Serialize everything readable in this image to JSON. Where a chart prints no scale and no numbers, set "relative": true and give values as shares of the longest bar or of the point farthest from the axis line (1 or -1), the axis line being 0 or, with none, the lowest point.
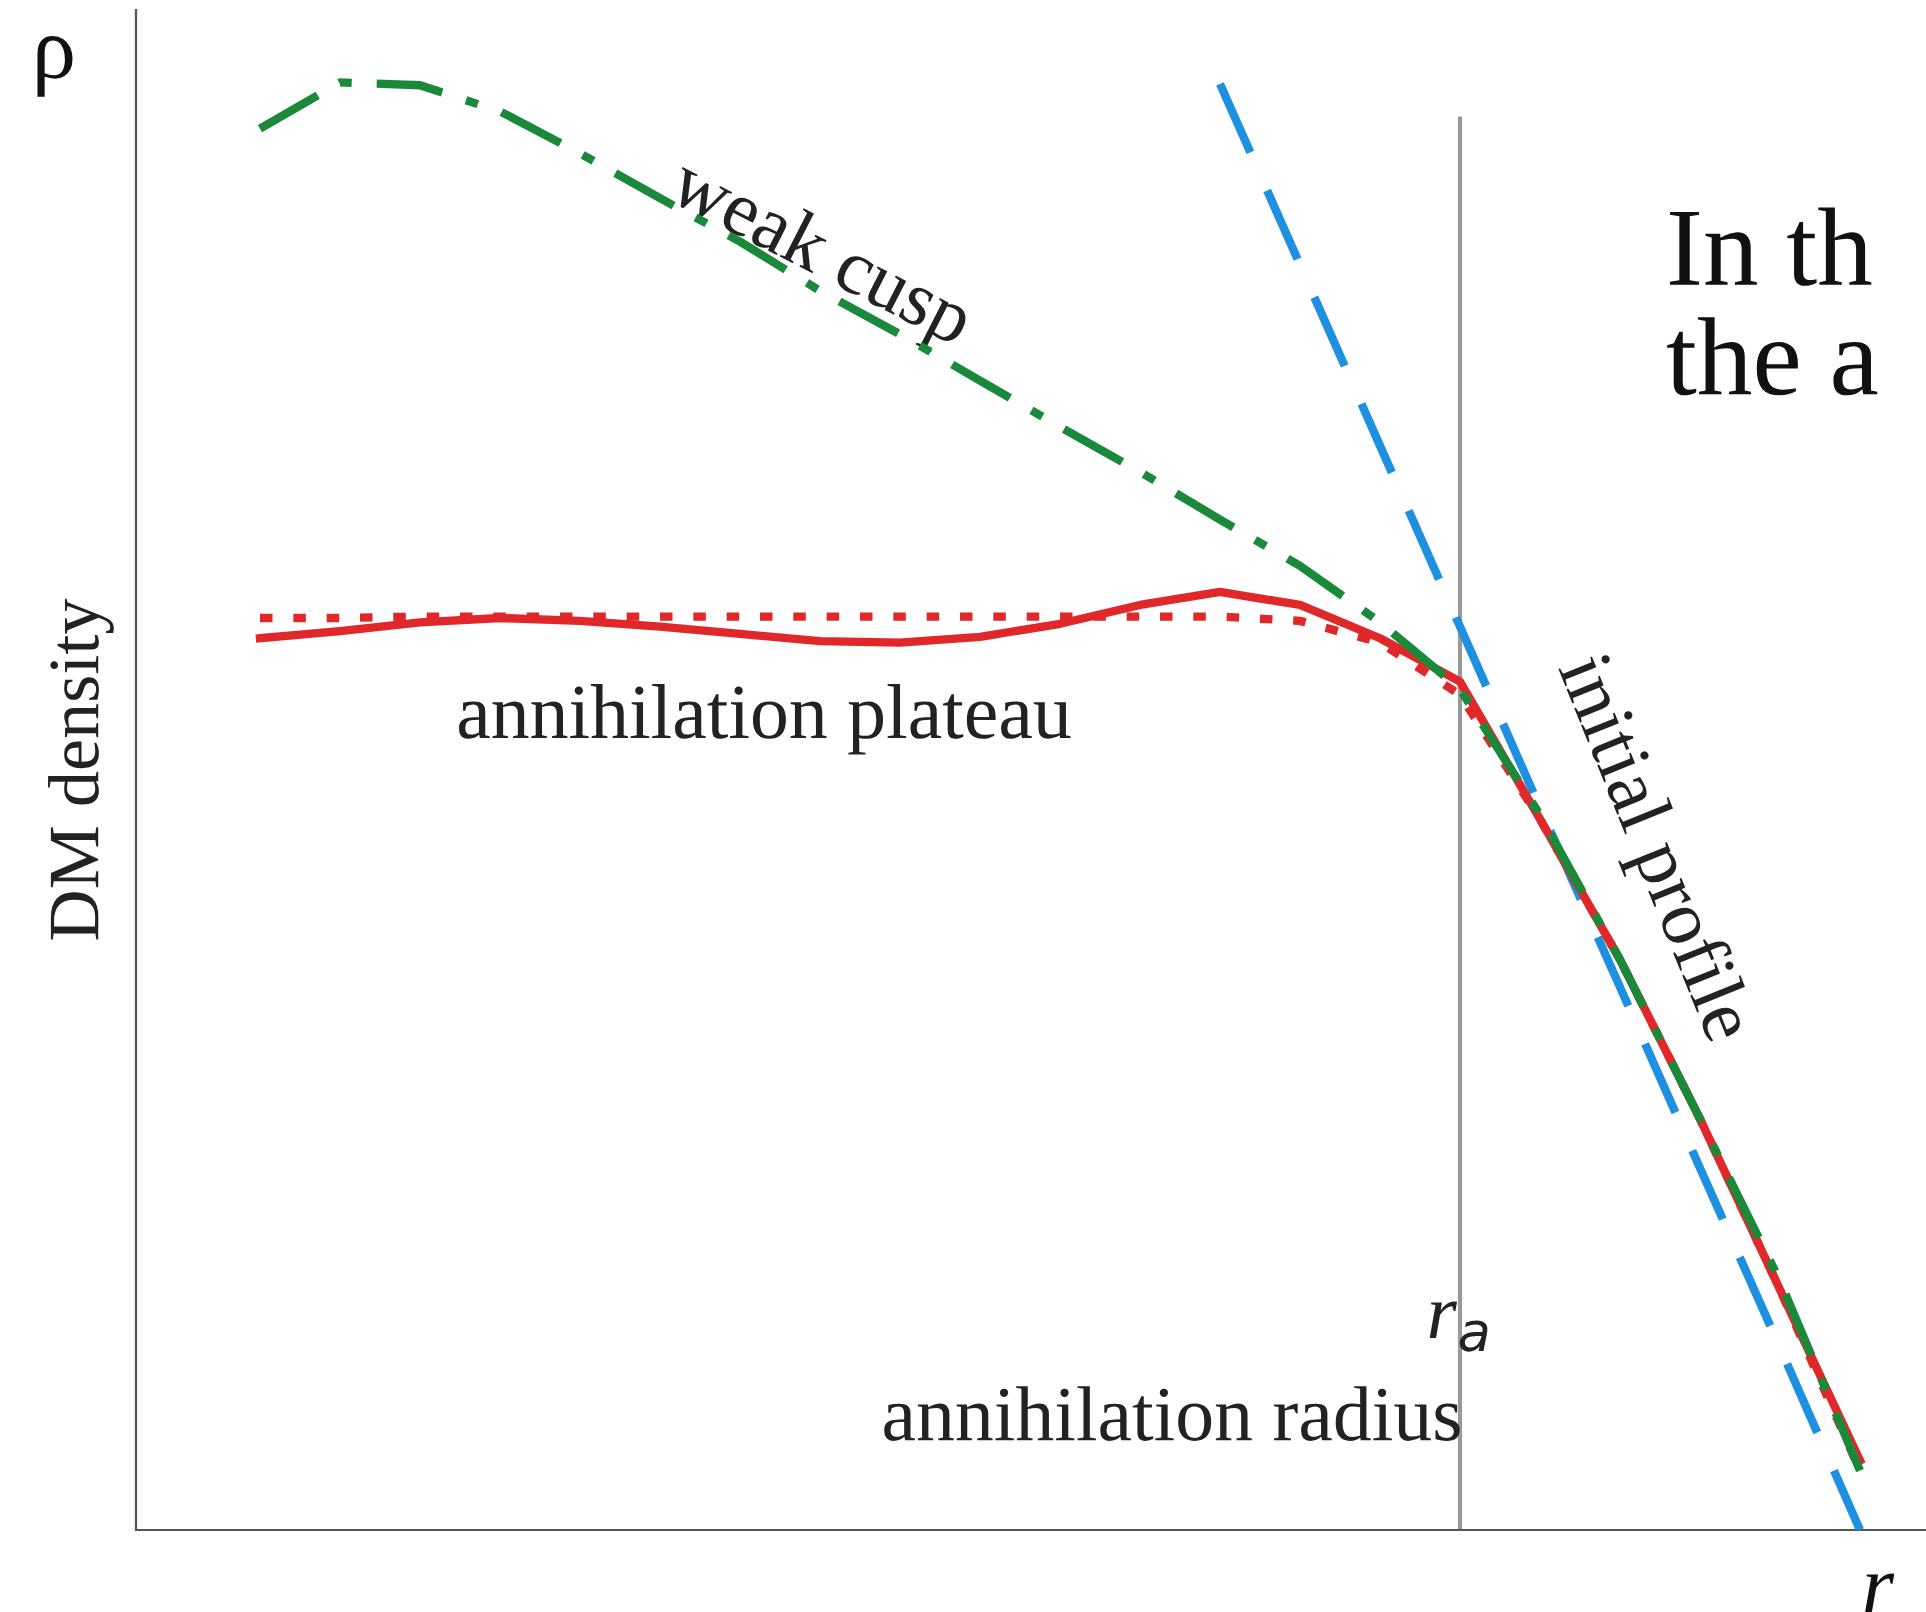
{
  "chart_data": {
    "type": "line",
    "relative": true,
    "ylabel": "DM density",
    "categories": [
      null,
      null,
      null,
      null,
      null,
      null,
      null,
      null,
      null,
      null,
      null,
      null,
      null,
      null,
      null,
      null,
      null,
      null,
      null,
      null,
      null
    ],
    "series": [
      {
        "name": "weak cusp",
        "color": "#1a8a3a",
        "line_style": "dashdot",
        "values": [
          0.968,
          1.0,
          0.998,
          0.98,
          0.951,
          0.92,
          0.89,
          0.856,
          0.826,
          0.794,
          0.762,
          0.731,
          0.698,
          0.666,
          0.627,
          0.581,
          0.494,
          0.394,
          0.284,
          0.172,
          0.041
        ]
      },
      {
        "name": "annihilation plateau",
        "color": "#e0282a",
        "line_style": "solid",
        "values": [
          0.616,
          0.621,
          0.627,
          0.63,
          0.628,
          0.624,
          0.619,
          0.614,
          0.613,
          0.617,
          0.626,
          0.639,
          0.648,
          0.639,
          0.616,
          0.586,
          0.491,
          0.394,
          0.284,
          0.166,
          0.048
        ]
      },
      {
        "color": "#e0282a",
        "line_style": "dotted",
        "values": [
          0.63,
          0.63,
          0.631,
          0.631,
          0.631,
          0.631,
          0.631,
          0.631,
          0.631,
          0.631,
          0.631,
          0.631,
          0.631,
          0.628,
          0.613,
          0.577,
          0.491,
          0.394,
          0.284,
          0.166,
          0.041
        ]
      },
      {
        "name": "initial profile",
        "color": "#1e90e0",
        "line_style": "dashed",
        "values": [
          null,
          null,
          null,
          null,
          null,
          null,
          null,
          null,
          null,
          null,
          null,
          null,
          0.999,
          0.874,
          0.749,
          0.624,
          0.499,
          0.375,
          0.25,
          0.126,
          0.0
        ]
      }
    ],
    "annotations": [
      "r$_{a}$",
      "annihilation radius",
      "ρ",
      "r",
      "In th",
      "the a"
    ]
  }
}
